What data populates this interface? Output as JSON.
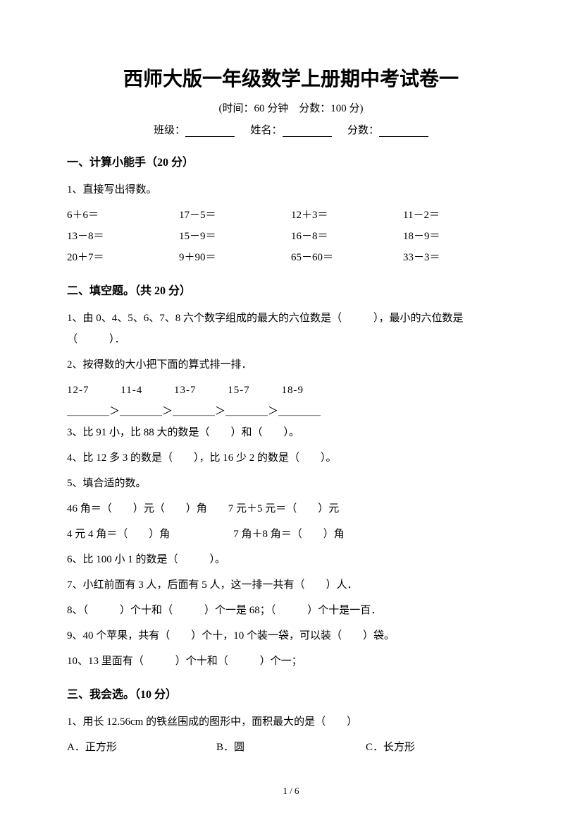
{
  "title": "西师大版一年级数学上册期中考试卷一",
  "subtitle": "(时间：60 分钟　分数：100 分)",
  "info": {
    "class_label": "班级：",
    "name_label": "姓名：",
    "score_label": "分数："
  },
  "section1": {
    "header": "一、计算小能手（20 分）",
    "q1_label": "1、直接写出得数。",
    "rows": [
      [
        "6＋6＝",
        "17－5＝",
        "12＋3＝",
        "11－2＝"
      ],
      [
        "13－8＝",
        "15－9＝",
        "16－8＝",
        "18－9＝"
      ],
      [
        "20＋7＝",
        "9＋90＝",
        "65－60＝",
        "33－3＝"
      ]
    ]
  },
  "section2": {
    "header": "二、填空题。（共 20 分）",
    "q1": "1、由 0、4、5、6、7、8 六个数字组成的最大的六位数是（　　　），最小的六位数是（　　　）．",
    "q2": "2、按得数的大小把下面的算式排一排．",
    "q2_items": [
      "12-7",
      "11-4",
      "13-7",
      "15-7",
      "18-9"
    ],
    "q2_seq": "＿＿＿＿＞＿＿＿＿＞＿＿＿＿＞＿＿＿＿＞＿＿＿＿",
    "q3": "3、比 91 小，比 88 大的数是（　　）和（　　）。",
    "q4": "4、比 12 多 3 的数是（　　），比 16 少 2 的数是（　　）。",
    "q5": "5、填合适的数。",
    "q5_line1": "46 角＝（　　）元（　　）角　　7 元＋5 元＝（　　）元",
    "q5_line2": "4 元 4 角＝（　　）角　　　　　　7 角＋8 角＝（　　）角",
    "q6": "6、比 100 小 1 的数是（　　　）。",
    "q7": "7、小红前面有 3 人，后面有 5 人，这一排一共有（　　）人．",
    "q8": "8、（　　　）个十和（　　　）个一是 68；（　　　）个十是一百．",
    "q9": "9、40 个苹果，共有（　　）个十，10 个装一袋，可以装（　　）袋。",
    "q10": "10、13 里面有（　　　）个十和（　　　）个一；"
  },
  "section3": {
    "header": "三、我会选。（10 分）",
    "q1": "1、用长 12.56cm 的铁丝围成的图形中，面积最大的是（　　）",
    "q1_choices": [
      "A．正方形",
      "B．圆",
      "C．长方形"
    ]
  },
  "page_num": "1 / 6"
}
